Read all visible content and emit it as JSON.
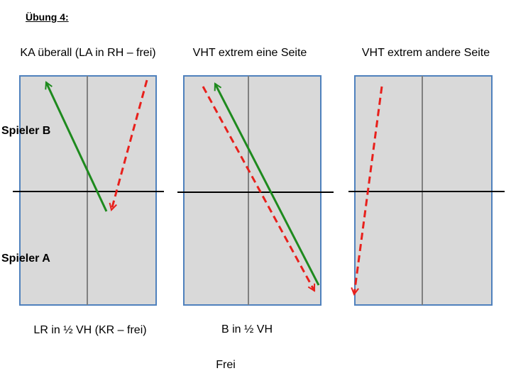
{
  "title": "Übung 4:",
  "players": {
    "top": "Spieler B",
    "bottom": "Spieler A"
  },
  "panels": [
    {
      "title": "KA überall (LA in RH – frei)",
      "caption": "LR in ½ VH (KR – frei)"
    },
    {
      "title": "VHT extrem eine Seite",
      "caption": "B in ½ VH"
    },
    {
      "title": "VHT extrem andere Seite"
    }
  ],
  "footer": "Frei"
}
